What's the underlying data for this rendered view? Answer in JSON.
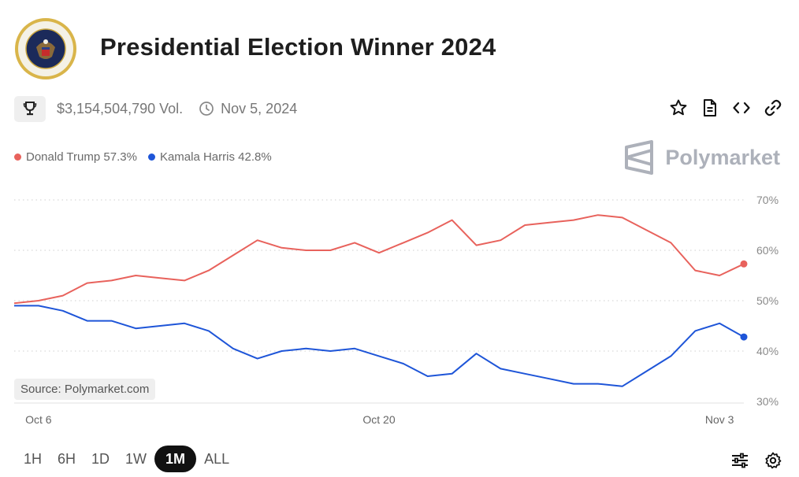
{
  "title": "Presidential Election Winner 2024",
  "volume": "$3,154,504,790 Vol.",
  "end_date": "Nov 5, 2024",
  "icons": {
    "seal": "presidential-seal-icon",
    "trophy": "trophy-icon",
    "clock": "clock-icon",
    "star": "star-icon",
    "document": "document-icon",
    "embed": "code-icon",
    "link": "link-icon",
    "filters": "sliders-icon",
    "settings": "gear-icon",
    "brand": "polymarket-logo-icon"
  },
  "legend": [
    {
      "name": "Donald Trump",
      "value": "57.3%",
      "color": "#e8625c"
    },
    {
      "name": "Kamala Harris",
      "value": "42.8%",
      "color": "#1e55d8"
    }
  ],
  "brand": "Polymarket",
  "source_label": "Source: Polymarket.com",
  "time_ranges": [
    "1H",
    "6H",
    "1D",
    "1W",
    "1M",
    "ALL"
  ],
  "active_range": "1M",
  "chart_data": {
    "type": "line",
    "x": [
      "2024-10-05",
      "2024-10-06",
      "2024-10-07",
      "2024-10-08",
      "2024-10-09",
      "2024-10-10",
      "2024-10-11",
      "2024-10-12",
      "2024-10-13",
      "2024-10-14",
      "2024-10-15",
      "2024-10-16",
      "2024-10-17",
      "2024-10-18",
      "2024-10-19",
      "2024-10-20",
      "2024-10-21",
      "2024-10-22",
      "2024-10-23",
      "2024-10-24",
      "2024-10-25",
      "2024-10-26",
      "2024-10-27",
      "2024-10-28",
      "2024-10-29",
      "2024-10-30",
      "2024-10-31",
      "2024-11-01",
      "2024-11-02",
      "2024-11-03",
      "2024-11-04"
    ],
    "series": [
      {
        "name": "Donald Trump",
        "color": "#e8625c",
        "values": [
          49.5,
          50.0,
          51.0,
          53.5,
          54.0,
          55.0,
          54.5,
          54.0,
          56.0,
          59.0,
          62.0,
          60.5,
          60.0,
          60.0,
          61.5,
          59.5,
          61.5,
          63.5,
          66.0,
          61.0,
          62.0,
          65.0,
          65.5,
          66.0,
          67.0,
          66.5,
          64.0,
          61.5,
          56.0,
          55.0,
          57.3
        ]
      },
      {
        "name": "Kamala Harris",
        "color": "#1e55d8",
        "values": [
          49.0,
          49.0,
          48.0,
          46.0,
          46.0,
          44.5,
          45.0,
          45.5,
          44.0,
          40.5,
          38.5,
          40.0,
          40.5,
          40.0,
          40.5,
          39.0,
          37.5,
          35.0,
          35.5,
          39.5,
          36.5,
          35.5,
          34.5,
          33.5,
          33.5,
          33.0,
          36.0,
          39.0,
          44.0,
          45.5,
          42.8
        ]
      }
    ],
    "x_tick_labels": [
      "Oct 6",
      "Oct 20",
      "Nov 3"
    ],
    "x_ticks": [
      "2024-10-06",
      "2024-10-20",
      "2024-11-03"
    ],
    "y_ticks": [
      30,
      40,
      50,
      60,
      70
    ],
    "y_tick_labels": [
      "30%",
      "40%",
      "50%",
      "60%",
      "70%"
    ],
    "ylim": [
      30,
      70
    ],
    "y_axis": "right",
    "grid": "horizontal-dotted",
    "legend_position": "top-left"
  }
}
